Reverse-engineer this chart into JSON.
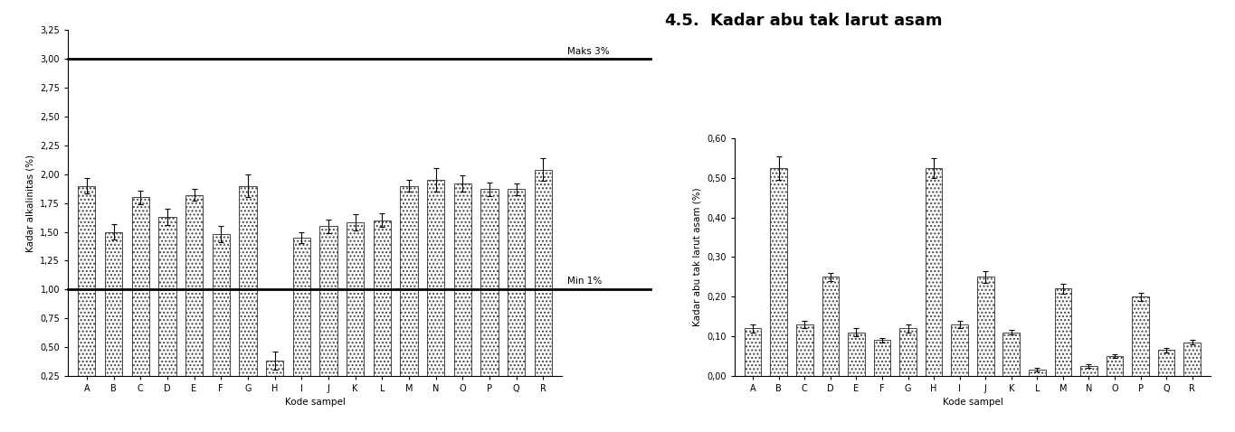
{
  "chart1": {
    "ylabel": "Kadar alkalinitas (%)",
    "xlabel": "Kode sampel",
    "categories": [
      "A",
      "B",
      "C",
      "D",
      "E",
      "F",
      "G",
      "H",
      "I",
      "J",
      "K",
      "L",
      "M",
      "N",
      "O",
      "P",
      "Q",
      "R"
    ],
    "values": [
      1.9,
      1.5,
      1.8,
      1.63,
      1.82,
      1.48,
      1.9,
      0.38,
      1.45,
      1.55,
      1.58,
      1.6,
      1.9,
      1.95,
      1.92,
      1.87,
      1.87,
      2.04
    ],
    "errors": [
      0.07,
      0.07,
      0.06,
      0.07,
      0.05,
      0.07,
      0.1,
      0.08,
      0.05,
      0.06,
      0.07,
      0.06,
      0.05,
      0.1,
      0.07,
      0.06,
      0.05,
      0.1
    ],
    "ylim": [
      0.25,
      3.25
    ],
    "yticks": [
      0.25,
      0.5,
      0.75,
      1.0,
      1.25,
      1.5,
      1.75,
      2.0,
      2.25,
      2.5,
      2.75,
      3.0,
      3.25
    ],
    "hline_max": 3.0,
    "hline_min": 1.0,
    "hline_max_label": "Maks 3%",
    "hline_min_label": "Min 1%"
  },
  "chart2": {
    "title_num": "4.5.",
    "title_text": "Kadar abu tak larut asam",
    "ylabel": "Kadar abu tak larut asam (%)",
    "xlabel": "Kode sampel",
    "cat_labels": [
      "A",
      "B",
      "C",
      "D",
      "E",
      "F",
      "G",
      "H",
      "I",
      "J",
      "K",
      "L",
      "M",
      "N",
      "O",
      "P",
      "Q",
      "R"
    ],
    "values": [
      0.12,
      0.525,
      0.13,
      0.25,
      0.11,
      0.09,
      0.12,
      0.525,
      0.13,
      0.25,
      0.11,
      0.015,
      0.22,
      0.025,
      0.05,
      0.2,
      0.065,
      0.085
    ],
    "errors": [
      0.01,
      0.03,
      0.01,
      0.01,
      0.01,
      0.005,
      0.01,
      0.025,
      0.01,
      0.015,
      0.005,
      0.005,
      0.012,
      0.005,
      0.005,
      0.01,
      0.005,
      0.005
    ],
    "ylim": [
      0.0,
      0.6
    ],
    "yticks": [
      0.0,
      0.1,
      0.2,
      0.3,
      0.4,
      0.5,
      0.6
    ]
  },
  "bar_color": "white",
  "bar_edgecolor": "#444444",
  "hatch_pattern": "....",
  "background_color": "#ffffff",
  "font_size_label": 7.5,
  "font_size_tick": 7,
  "title_fontsize": 13,
  "title_fontweight": "bold"
}
